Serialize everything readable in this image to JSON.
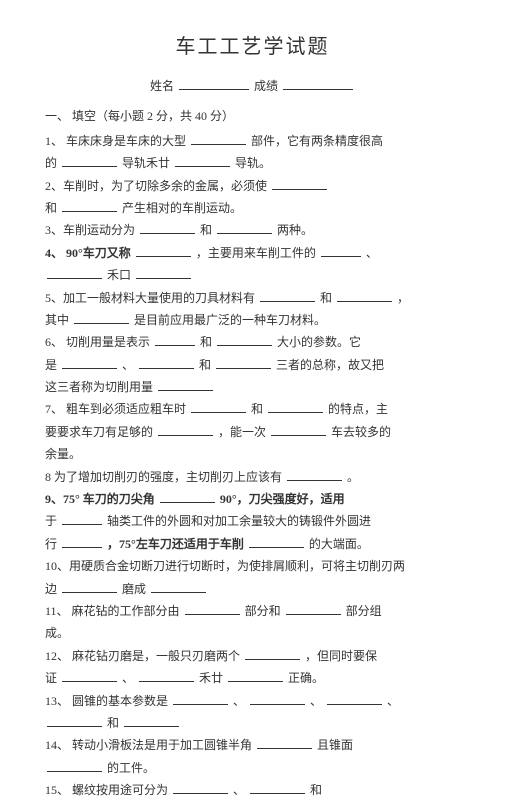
{
  "title": "车工工艺学试题",
  "name_label": "姓名",
  "score_label": "成绩",
  "section1": "一、 填空（每小题 2 分，共 40 分）",
  "q1_a": "1、 车床床身是车床的大型",
  "q1_b": "部件，它有两条精度很高",
  "q1_c": "的",
  "q1_d": "导轨禾廿",
  "q1_e": "导轨。",
  "q2_a": "2、车削时，为了切除多余的金属，必须使",
  "q2_b": "和",
  "q2_c": "产生相对的车削运动。",
  "q3_a": "3、车削运动分为",
  "q3_b": "和",
  "q3_c": "两种。",
  "q4_a": "4、 90°车刀又称",
  "q4_b": "，主要用来车削工件的",
  "q4_c": "、",
  "q4_d": "禾口",
  "q5_a": "5、加工一般材料大量使用的刀具材料有",
  "q5_b": "和",
  "q5_c": "，",
  "q5_d": "其中",
  "q5_e": "是目前应用最广泛的一种车刀材料。",
  "q6_a": "6、 切削用量是表示",
  "q6_b": "和",
  "q6_c": "大小的参数。它",
  "q6_d": "是",
  "q6_e": "、",
  "q6_f": "和",
  "q6_g": "三者的总称，故又把",
  "q6_h": "这三者称为切削用量",
  "q7_a": "7、 粗车到必须适应粗车时",
  "q7_b": "和",
  "q7_c": "的特点，主",
  "q7_d": "要要求车刀有足够的",
  "q7_e": "，能一次",
  "q7_f": "车去较多的",
  "q7_g": "余量。",
  "q8_a": "8 为了增加切削刃的强度，主切削刃上应该有",
  "q8_b": "。",
  "q9_a": "9、75° 车刀的刀尖角",
  "q9_b": "90°，刀尖强度好，适用",
  "q9_c": "于",
  "q9_d": "轴类工件的外圆和对加工余量较大的铸锻件外圆进",
  "q9_e": "行",
  "q9_f": "，75°左车刀还适用于车削",
  "q9_g": "的大端面。",
  "q10_a": "10、用硬质合金切断刀进行切断时，为使排屑顺利，可将主切削刃两",
  "q10_b": "边",
  "q10_c": "磨成",
  "q11_a": "11、 麻花钻的工作部分由",
  "q11_b": "部分和",
  "q11_c": "部分组",
  "q11_d": "成。",
  "q12_a": "12、 麻花钻刃磨是，一般只刃磨两个",
  "q12_b": "，但同时要保",
  "q12_c": "证",
  "q12_d": "、",
  "q12_e": "禾廿",
  "q12_f": "正确。",
  "q13_a": "13、 圆锥的基本参数是",
  "q13_b": "、",
  "q13_c": "、",
  "q13_d": "、",
  "q13_e": "和",
  "q14_a": "14、 转动小滑板法是用于加工圆锥半角",
  "q14_b": "且锥面",
  "q14_c": "的工件。",
  "q15_a": "15、 螺纹按用途可分为",
  "q15_b": "、",
  "q15_c": "和"
}
